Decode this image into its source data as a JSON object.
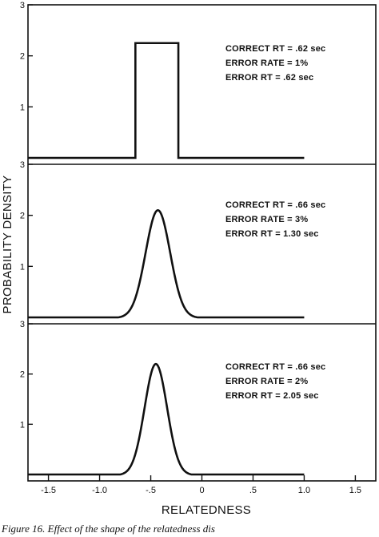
{
  "chart_data": {
    "type": "line",
    "xlabel": "RELATEDNESS",
    "ylabel": "PROBABILITY DENSITY",
    "xlim": [
      -1.7,
      1.7
    ],
    "x_ticks": [
      "-1.5",
      "-1.0",
      "-.5",
      "0",
      ".5",
      "1.0",
      "1.5"
    ],
    "caption": "Figure 16. Effect of the shape of the relatedness dis",
    "color": "#111111",
    "panels": [
      {
        "shape": "rectangular",
        "ylim": [
          0,
          3
        ],
        "y_ticks": [
          "1",
          "2",
          "3"
        ],
        "x_range": [
          -1.7,
          1.0
        ],
        "rect_low": -0.65,
        "rect_high": -0.23,
        "height": 2.25,
        "annotations": [
          "CORRECT RT = .62 sec",
          "ERROR RATE = 1%",
          "ERROR RT = .62 sec"
        ]
      },
      {
        "shape": "normal",
        "ylim": [
          0,
          3
        ],
        "y_ticks": [
          "1",
          "2",
          "3"
        ],
        "x_range": [
          -1.7,
          1.0
        ],
        "mean": -0.43,
        "sd": 0.12,
        "peak": 2.1,
        "support": [
          -0.82,
          -0.04
        ],
        "annotations": [
          "CORRECT RT = .66 sec",
          "ERROR RATE = 3%",
          "ERROR RT = 1.30 sec"
        ]
      },
      {
        "shape": "normal",
        "ylim": [
          0,
          3
        ],
        "y_ticks": [
          "1",
          "2",
          "3"
        ],
        "x_range": [
          -1.7,
          1.0
        ],
        "mean": -0.45,
        "sd": 0.11,
        "peak": 2.2,
        "support": [
          -0.8,
          -0.1
        ],
        "annotations": [
          "CORRECT RT = .66 sec",
          "ERROR RATE = 2%",
          "ERROR RT = 2.05 sec"
        ]
      }
    ]
  }
}
